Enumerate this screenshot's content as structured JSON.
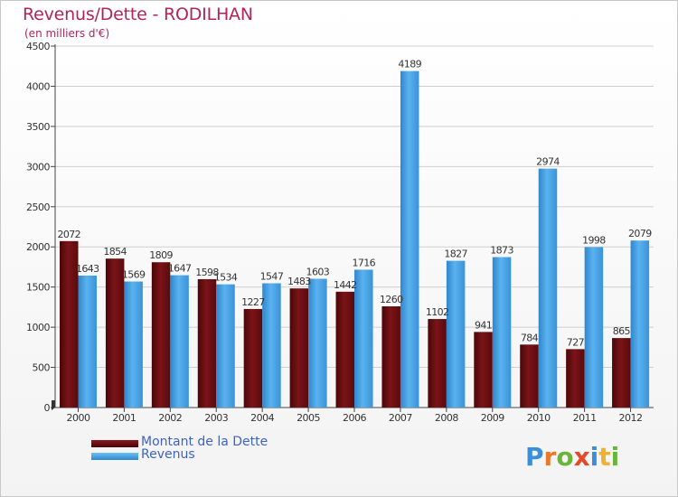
{
  "header": {
    "title": "Revenus/Dette - RODILHAN",
    "subtitle": "(en milliers d'€)"
  },
  "legend": {
    "debt_label": "Montant de la Dette",
    "revenue_label": "Revenus"
  },
  "logo": {
    "letters": [
      "P",
      "r",
      "o",
      "x",
      "i",
      "t",
      "i"
    ],
    "colors": [
      "#3a8fd8",
      "#e8782a",
      "#6ab43a",
      "#e24a2a",
      "#3a8fd8",
      "#f0b030",
      "#6ab43a"
    ]
  },
  "colors": {
    "debt": "#6b0f12",
    "revenue": "#4aa3e6",
    "axis": "#444444",
    "grid": "#cfcfcf",
    "label": "#333333"
  },
  "chart_data": {
    "type": "bar",
    "title": "Revenus/Dette - RODILHAN",
    "ylabel": "(en milliers d'€)",
    "xlabel": "",
    "ylim": [
      0,
      4500
    ],
    "yticks": [
      0,
      500,
      1000,
      1500,
      2000,
      2500,
      3000,
      3500,
      4000,
      4500
    ],
    "categories": [
      "2000",
      "2001",
      "2002",
      "2003",
      "2004",
      "2005",
      "2006",
      "2007",
      "2008",
      "2009",
      "2010",
      "2011",
      "2012"
    ],
    "series": [
      {
        "name": "Montant de la Dette",
        "values": [
          2072,
          1854,
          1809,
          1598,
          1227,
          1483,
          1442,
          1260,
          1102,
          941,
          784,
          727,
          865
        ]
      },
      {
        "name": "Revenus",
        "values": [
          1643,
          1569,
          1647,
          1534,
          1547,
          1603,
          1716,
          4189,
          1827,
          1873,
          2974,
          1998,
          2079
        ]
      }
    ],
    "grid": true,
    "legend_position": "bottom-left"
  }
}
